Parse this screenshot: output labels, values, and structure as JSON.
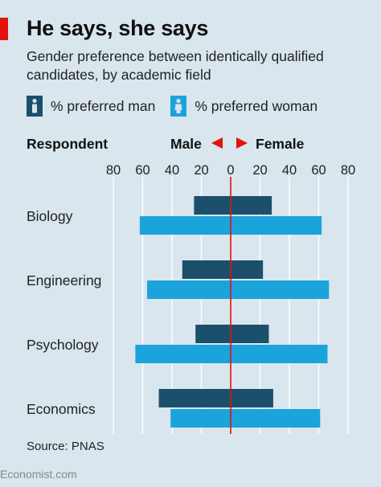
{
  "title": "He says, she says",
  "subtitle": "Gender preference between identically qualified candidates, by academic field",
  "legend": {
    "man_label": "% preferred man",
    "woman_label": "% preferred woman"
  },
  "headers": {
    "respondent": "Respondent",
    "male": "Male",
    "female": "Female"
  },
  "source": "Source: PNAS",
  "footer": "Economist.com",
  "colors": {
    "background": "#d9e6ee",
    "man": "#1b4f6b",
    "woman": "#1ba3dc",
    "accent_red": "#e3120b",
    "gridline": "#ffffff"
  },
  "icons": [
    "male-person-icon",
    "female-person-icon",
    "arrow-left-icon",
    "arrow-right-icon"
  ],
  "chart_data": {
    "type": "bar",
    "orientation": "horizontal-diverging",
    "categories": [
      "Biology",
      "Engineering",
      "Psychology",
      "Economics"
    ],
    "xlim": [
      -80,
      80
    ],
    "x_ticks": [
      -80,
      -60,
      -40,
      -20,
      0,
      20,
      40,
      60,
      80
    ],
    "x_tick_labels": [
      "80",
      "60",
      "40",
      "20",
      "0",
      "20",
      "40",
      "60",
      "80"
    ],
    "x_direction_labels": {
      "left": "Male",
      "right": "Female"
    },
    "grid": true,
    "series": [
      {
        "name": "% preferred man",
        "respondent": "male and female respondents",
        "male_side": [
          25,
          33,
          24,
          49
        ],
        "female_side": [
          28,
          22,
          26,
          29
        ]
      },
      {
        "name": "% preferred woman",
        "male_side": [
          62,
          57,
          65,
          41
        ],
        "female_side": [
          62,
          67,
          66,
          61
        ]
      }
    ]
  }
}
